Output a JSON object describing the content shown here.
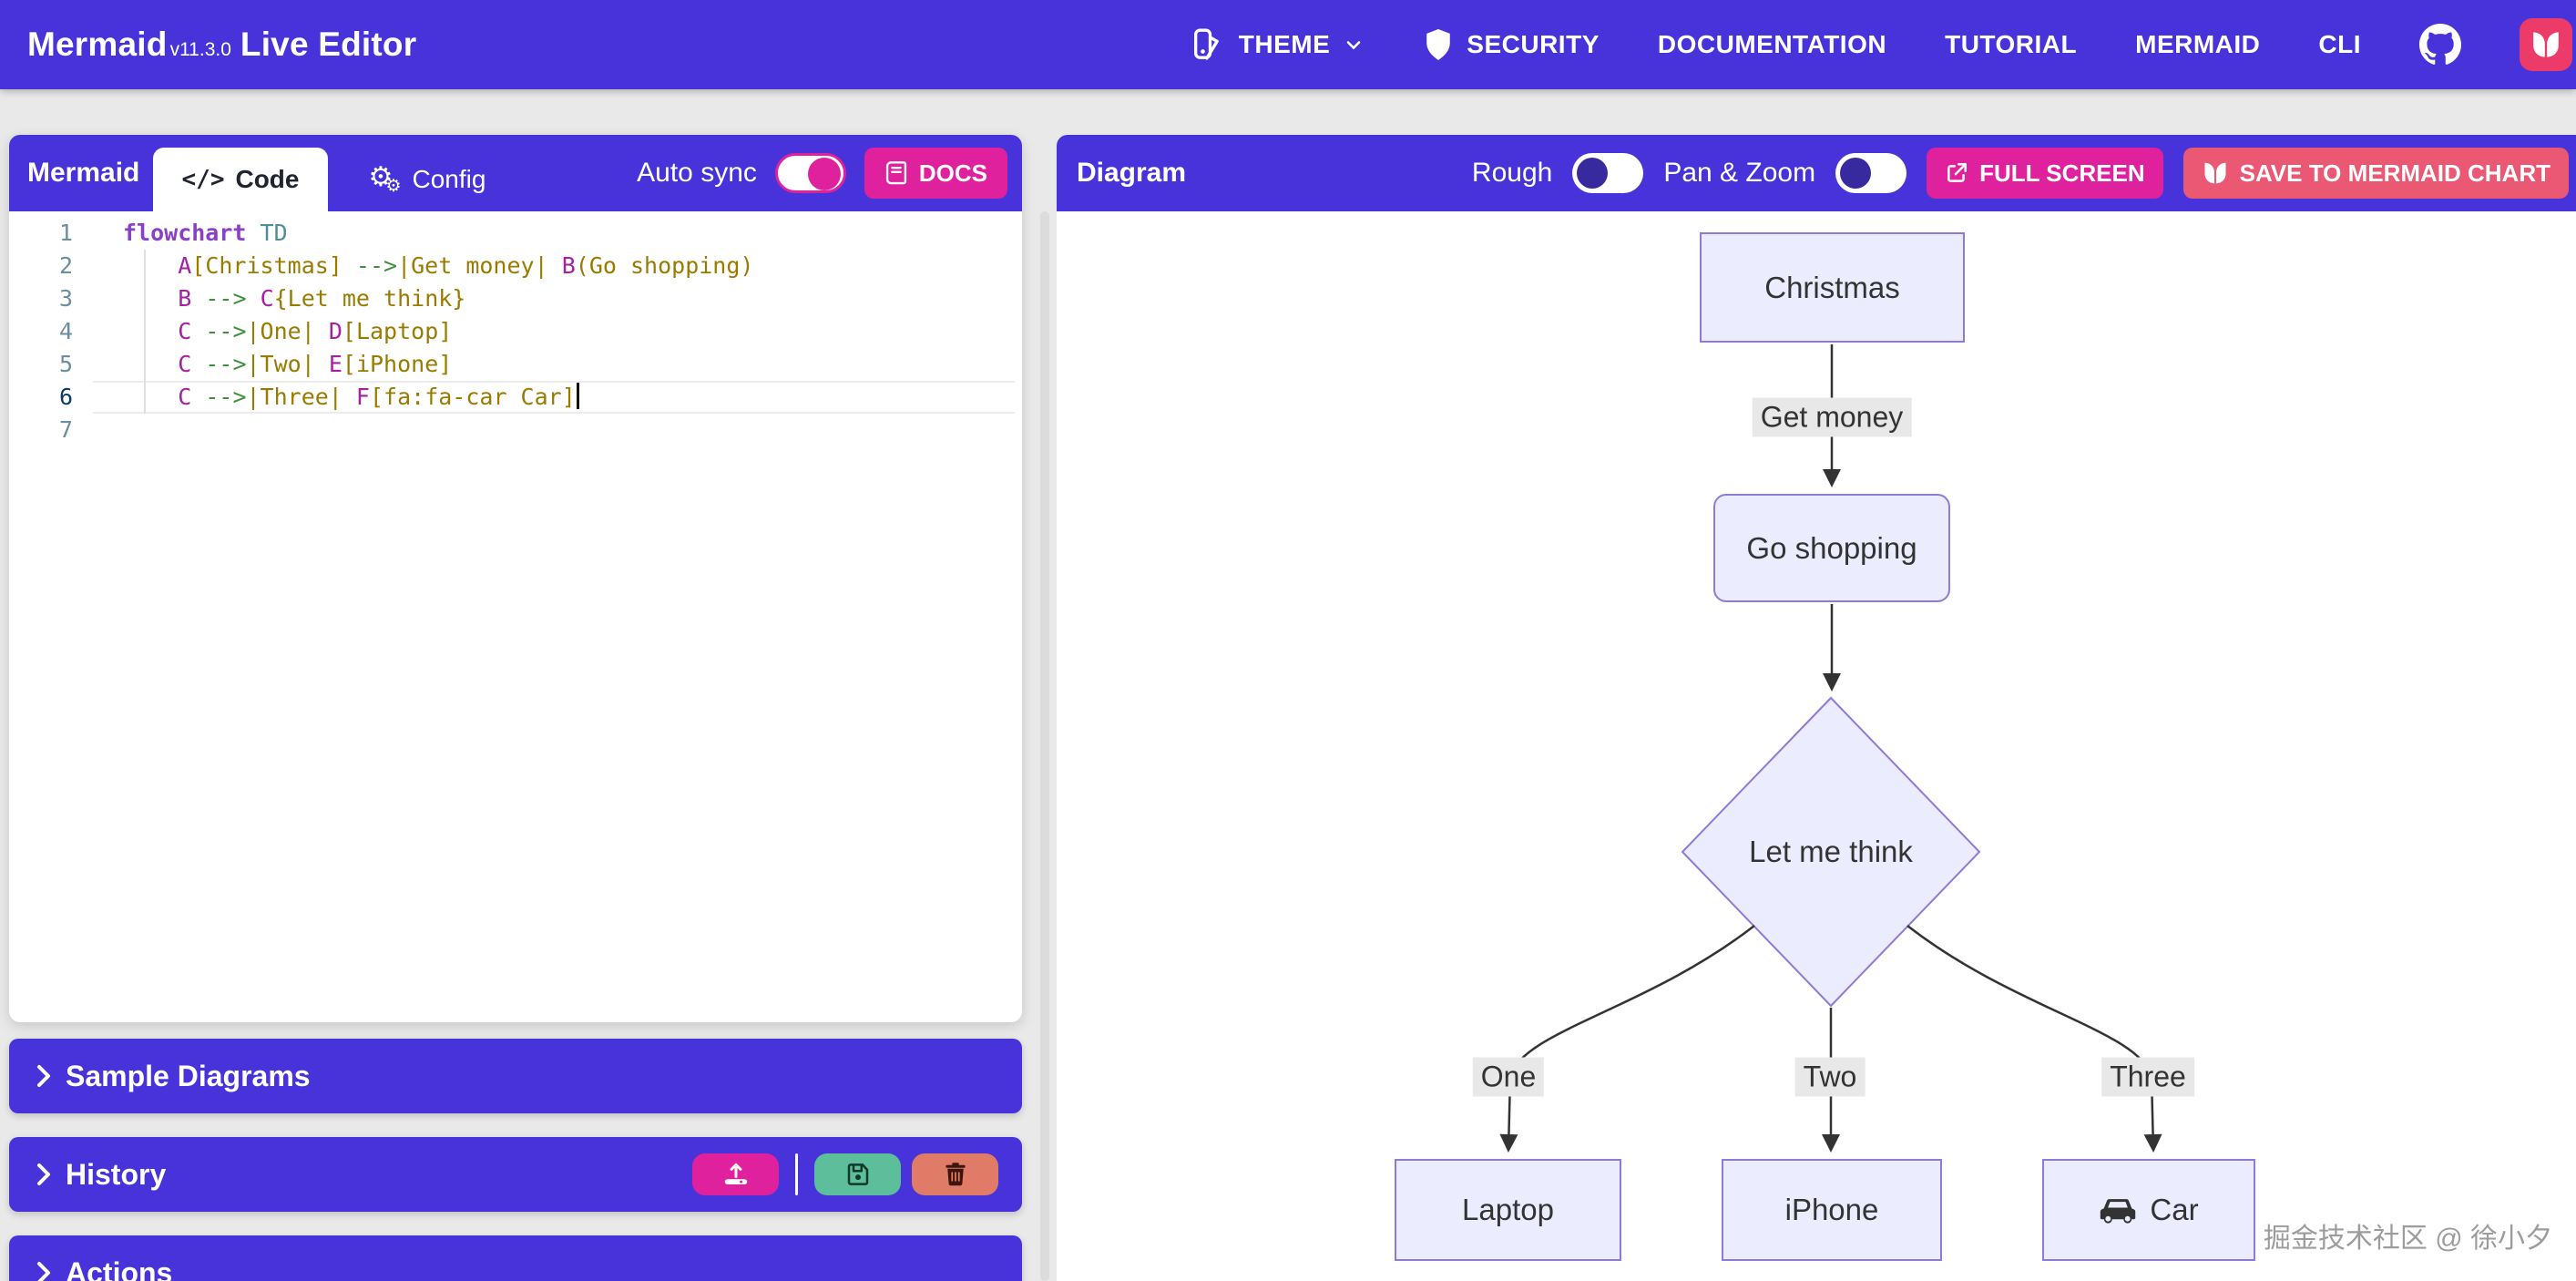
{
  "header": {
    "brand": {
      "name": "Mermaid",
      "version": "v11.3.0",
      "suffix": "Live Editor"
    },
    "nav": [
      {
        "label": "THEME"
      },
      {
        "label": "SECURITY"
      },
      {
        "label": "DOCUMENTATION"
      },
      {
        "label": "TUTORIAL"
      },
      {
        "label": "MERMAID"
      },
      {
        "label": "CLI"
      }
    ]
  },
  "editor_panel": {
    "title": "Mermaid",
    "tabs": [
      {
        "label": "Code"
      },
      {
        "label": "Config"
      }
    ],
    "active_tab": "Code",
    "auto_sync_label": "Auto sync",
    "auto_sync_on": true,
    "docs_label": "DOCS",
    "code_lines": [
      {
        "num": "1",
        "tokens": [
          [
            "k",
            "flowchart"
          ],
          [
            "p",
            " "
          ],
          [
            "t",
            "TD"
          ]
        ]
      },
      {
        "num": "2",
        "tokens": [
          [
            "p",
            "    "
          ],
          [
            "n",
            "A"
          ],
          [
            "s",
            "[Christmas]"
          ],
          [
            "p",
            " "
          ],
          [
            "a",
            "-->"
          ],
          [
            "s",
            "|Get money|"
          ],
          [
            "p",
            " "
          ],
          [
            "n",
            "B"
          ],
          [
            "s",
            "(Go shopping)"
          ]
        ]
      },
      {
        "num": "3",
        "tokens": [
          [
            "p",
            "    "
          ],
          [
            "n",
            "B"
          ],
          [
            "p",
            " "
          ],
          [
            "a",
            "-->"
          ],
          [
            "p",
            " "
          ],
          [
            "n",
            "C"
          ],
          [
            "s",
            "{Let me think}"
          ]
        ]
      },
      {
        "num": "4",
        "tokens": [
          [
            "p",
            "    "
          ],
          [
            "n",
            "C"
          ],
          [
            "p",
            " "
          ],
          [
            "a",
            "-->"
          ],
          [
            "s",
            "|One|"
          ],
          [
            "p",
            " "
          ],
          [
            "n",
            "D"
          ],
          [
            "s",
            "[Laptop]"
          ]
        ]
      },
      {
        "num": "5",
        "tokens": [
          [
            "p",
            "    "
          ],
          [
            "n",
            "C"
          ],
          [
            "p",
            " "
          ],
          [
            "a",
            "-->"
          ],
          [
            "s",
            "|Two|"
          ],
          [
            "p",
            " "
          ],
          [
            "n",
            "E"
          ],
          [
            "s",
            "[iPhone]"
          ]
        ]
      },
      {
        "num": "6",
        "tokens": [
          [
            "p",
            "    "
          ],
          [
            "n",
            "C"
          ],
          [
            "p",
            " "
          ],
          [
            "a",
            "-->"
          ],
          [
            "s",
            "|Three|"
          ],
          [
            "p",
            " "
          ],
          [
            "n",
            "F"
          ],
          [
            "s",
            "[fa:fa-car Car]"
          ]
        ],
        "active": true,
        "cursor": true
      },
      {
        "num": "7",
        "tokens": []
      }
    ]
  },
  "panels": {
    "sample_diagrams": "Sample Diagrams",
    "history": "History",
    "actions": "Actions"
  },
  "diagram_panel": {
    "title": "Diagram",
    "rough_label": "Rough",
    "rough_on": false,
    "pan_zoom_label": "Pan & Zoom",
    "pan_zoom_on": false,
    "fullscreen_label": "FULL SCREEN",
    "save_label": "SAVE TO MERMAID CHART"
  },
  "flowchart": {
    "nodes": [
      {
        "id": "A",
        "label": "Christmas",
        "shape": "rect"
      },
      {
        "id": "B",
        "label": "Go shopping",
        "shape": "rounded"
      },
      {
        "id": "C",
        "label": "Let me think",
        "shape": "diamond"
      },
      {
        "id": "D",
        "label": "Laptop",
        "shape": "rect"
      },
      {
        "id": "E",
        "label": "iPhone",
        "shape": "rect"
      },
      {
        "id": "F",
        "label": "Car",
        "shape": "rect",
        "icon": "car-icon"
      }
    ],
    "edges": [
      {
        "from": "A",
        "to": "B",
        "label": "Get money"
      },
      {
        "from": "B",
        "to": "C",
        "label": ""
      },
      {
        "from": "C",
        "to": "D",
        "label": "One"
      },
      {
        "from": "C",
        "to": "E",
        "label": "Two"
      },
      {
        "from": "C",
        "to": "F",
        "label": "Three"
      }
    ]
  },
  "watermark": "掘金技术社区 @ 徐小夕",
  "colors": {
    "primary": "#4733d9",
    "magenta": "#e0219e",
    "rose": "#eb5874",
    "green": "#5cbe9b",
    "salmon": "#df7b66",
    "node_fill": "#ececff",
    "node_border": "#9370db",
    "edge": "#333333"
  }
}
